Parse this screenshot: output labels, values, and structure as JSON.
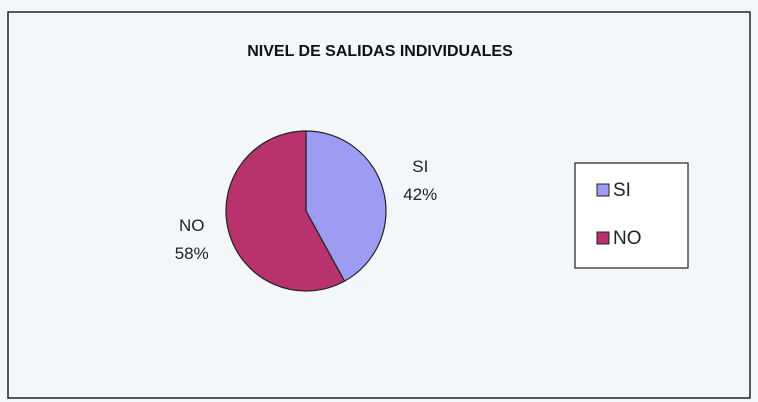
{
  "chart_data": {
    "type": "pie",
    "title": "NIVEL DE SALIDAS INDIVIDUALES",
    "categories": [
      "SI",
      "NO"
    ],
    "values": [
      42,
      58
    ],
    "value_labels": [
      "42%",
      "58%"
    ],
    "colors": [
      "#9c9cf2",
      "#b8336e"
    ],
    "legend": "right"
  }
}
